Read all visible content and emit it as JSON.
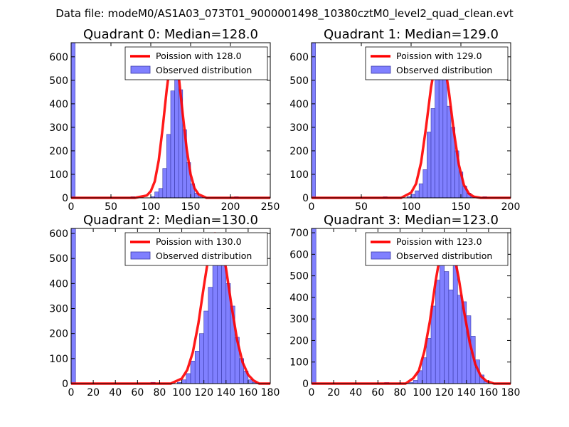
{
  "figure_title": "Data file: modeM0/AS1A03_073T01_9000001498_10380cztM0_level2_quad_clean.evt",
  "colors": {
    "bar_fill": "#8080ff",
    "bar_stroke": "#3838a8",
    "curve": "#ff0000",
    "axes": "#000000"
  },
  "chart_data": [
    {
      "type": "bar",
      "title": "Quadrant 0: Median=128.0",
      "xlim": [
        0,
        250
      ],
      "ylim": [
        0,
        660
      ],
      "xticks": [
        0,
        50,
        100,
        150,
        200,
        250
      ],
      "yticks": [
        0,
        100,
        200,
        300,
        400,
        500,
        600
      ],
      "bin_width": 5,
      "bins": [
        {
          "x": 0,
          "y": 660
        },
        {
          "x": 75,
          "y": 5
        },
        {
          "x": 100,
          "y": 5
        },
        {
          "x": 105,
          "y": 25
        },
        {
          "x": 110,
          "y": 40
        },
        {
          "x": 115,
          "y": 125
        },
        {
          "x": 120,
          "y": 270
        },
        {
          "x": 125,
          "y": 455
        },
        {
          "x": 130,
          "y": 575
        },
        {
          "x": 135,
          "y": 460
        },
        {
          "x": 140,
          "y": 290
        },
        {
          "x": 145,
          "y": 150
        },
        {
          "x": 150,
          "y": 60
        },
        {
          "x": 155,
          "y": 20
        },
        {
          "x": 160,
          "y": 5
        },
        {
          "x": 205,
          "y": 5
        }
      ],
      "curve": {
        "x": [
          0,
          80,
          95,
          100,
          105,
          110,
          115,
          120,
          125,
          128,
          130,
          135,
          140,
          145,
          150,
          155,
          160,
          170,
          200,
          250
        ],
        "y": [
          0,
          0,
          10,
          28,
          70,
          160,
          300,
          460,
          590,
          625,
          610,
          520,
          360,
          210,
          100,
          40,
          15,
          0,
          0,
          0
        ]
      },
      "legend": {
        "curve": "Poission with 128.0",
        "bars": "Observed distribution"
      }
    },
    {
      "type": "bar",
      "title": "Quadrant 1: Median=129.0",
      "xlim": [
        0,
        200
      ],
      "ylim": [
        0,
        660
      ],
      "xticks": [
        0,
        50,
        100,
        150,
        200
      ],
      "yticks": [
        0,
        100,
        200,
        300,
        400,
        500,
        600
      ],
      "bin_width": 4,
      "bins": [
        {
          "x": 0,
          "y": 660
        },
        {
          "x": 72,
          "y": 5
        },
        {
          "x": 96,
          "y": 5
        },
        {
          "x": 100,
          "y": 15
        },
        {
          "x": 104,
          "y": 30
        },
        {
          "x": 108,
          "y": 60
        },
        {
          "x": 112,
          "y": 120
        },
        {
          "x": 116,
          "y": 280
        },
        {
          "x": 120,
          "y": 380
        },
        {
          "x": 124,
          "y": 510
        },
        {
          "x": 128,
          "y": 575
        },
        {
          "x": 132,
          "y": 525
        },
        {
          "x": 136,
          "y": 390
        },
        {
          "x": 140,
          "y": 300
        },
        {
          "x": 144,
          "y": 200
        },
        {
          "x": 148,
          "y": 110
        },
        {
          "x": 152,
          "y": 50
        },
        {
          "x": 156,
          "y": 20
        },
        {
          "x": 160,
          "y": 5
        },
        {
          "x": 172,
          "y": 5
        }
      ],
      "curve": {
        "x": [
          0,
          90,
          100,
          105,
          110,
          115,
          120,
          125,
          129,
          133,
          138,
          143,
          148,
          153,
          158,
          163,
          170,
          200
        ],
        "y": [
          0,
          0,
          22,
          60,
          150,
          300,
          470,
          590,
          620,
          590,
          450,
          280,
          140,
          55,
          18,
          5,
          0,
          0
        ]
      },
      "legend": {
        "curve": "Poission with 129.0",
        "bars": "Observed distribution"
      }
    },
    {
      "type": "bar",
      "title": "Quadrant 2: Median=130.0",
      "xlim": [
        0,
        180
      ],
      "ylim": [
        0,
        620
      ],
      "xticks": [
        0,
        20,
        40,
        60,
        80,
        100,
        120,
        140,
        160,
        180
      ],
      "yticks": [
        0,
        100,
        200,
        300,
        400,
        500,
        600
      ],
      "bin_width": 4,
      "bins": [
        {
          "x": 0,
          "y": 620
        },
        {
          "x": 72,
          "y": 5
        },
        {
          "x": 96,
          "y": 5
        },
        {
          "x": 100,
          "y": 15
        },
        {
          "x": 104,
          "y": 40
        },
        {
          "x": 108,
          "y": 90
        },
        {
          "x": 112,
          "y": 130
        },
        {
          "x": 116,
          "y": 200
        },
        {
          "x": 120,
          "y": 290
        },
        {
          "x": 124,
          "y": 385
        },
        {
          "x": 128,
          "y": 520
        },
        {
          "x": 132,
          "y": 585
        },
        {
          "x": 136,
          "y": 490
        },
        {
          "x": 140,
          "y": 400
        },
        {
          "x": 144,
          "y": 310
        },
        {
          "x": 148,
          "y": 185
        },
        {
          "x": 152,
          "y": 100
        },
        {
          "x": 156,
          "y": 50
        },
        {
          "x": 160,
          "y": 15
        },
        {
          "x": 164,
          "y": 5
        }
      ],
      "curve": {
        "x": [
          0,
          90,
          100,
          105,
          110,
          115,
          120,
          125,
          130,
          135,
          140,
          145,
          150,
          155,
          160,
          165,
          170,
          180
        ],
        "y": [
          0,
          0,
          20,
          55,
          125,
          240,
          390,
          530,
          600,
          575,
          460,
          310,
          175,
          85,
          35,
          12,
          0,
          0
        ]
      },
      "legend": {
        "curve": "Poission with 130.0",
        "bars": "Observed distribution"
      }
    },
    {
      "type": "bar",
      "title": "Quadrant 3: Median=123.0",
      "xlim": [
        0,
        180
      ],
      "ylim": [
        0,
        720
      ],
      "xticks": [
        0,
        20,
        40,
        60,
        80,
        100,
        120,
        140,
        160,
        180
      ],
      "yticks": [
        0,
        100,
        200,
        300,
        400,
        500,
        600,
        700
      ],
      "bin_width": 4,
      "bins": [
        {
          "x": 0,
          "y": 720
        },
        {
          "x": 66,
          "y": 5
        },
        {
          "x": 88,
          "y": 5
        },
        {
          "x": 92,
          "y": 15
        },
        {
          "x": 96,
          "y": 60
        },
        {
          "x": 100,
          "y": 120
        },
        {
          "x": 104,
          "y": 210
        },
        {
          "x": 108,
          "y": 360
        },
        {
          "x": 112,
          "y": 480
        },
        {
          "x": 116,
          "y": 650
        },
        {
          "x": 120,
          "y": 520
        },
        {
          "x": 124,
          "y": 435
        },
        {
          "x": 128,
          "y": 600
        },
        {
          "x": 132,
          "y": 410
        },
        {
          "x": 136,
          "y": 380
        },
        {
          "x": 140,
          "y": 315
        },
        {
          "x": 144,
          "y": 220
        },
        {
          "x": 148,
          "y": 110
        },
        {
          "x": 152,
          "y": 40
        },
        {
          "x": 156,
          "y": 10
        }
      ],
      "curve": {
        "x": [
          0,
          85,
          92,
          97,
          102,
          107,
          112,
          117,
          123,
          128,
          133,
          138,
          143,
          148,
          153,
          158,
          165,
          180
        ],
        "y": [
          0,
          0,
          25,
          60,
          150,
          290,
          470,
          620,
          665,
          620,
          490,
          330,
          190,
          90,
          35,
          12,
          0,
          0
        ]
      },
      "legend": {
        "curve": "Poission with 123.0",
        "bars": "Observed distribution"
      }
    }
  ]
}
